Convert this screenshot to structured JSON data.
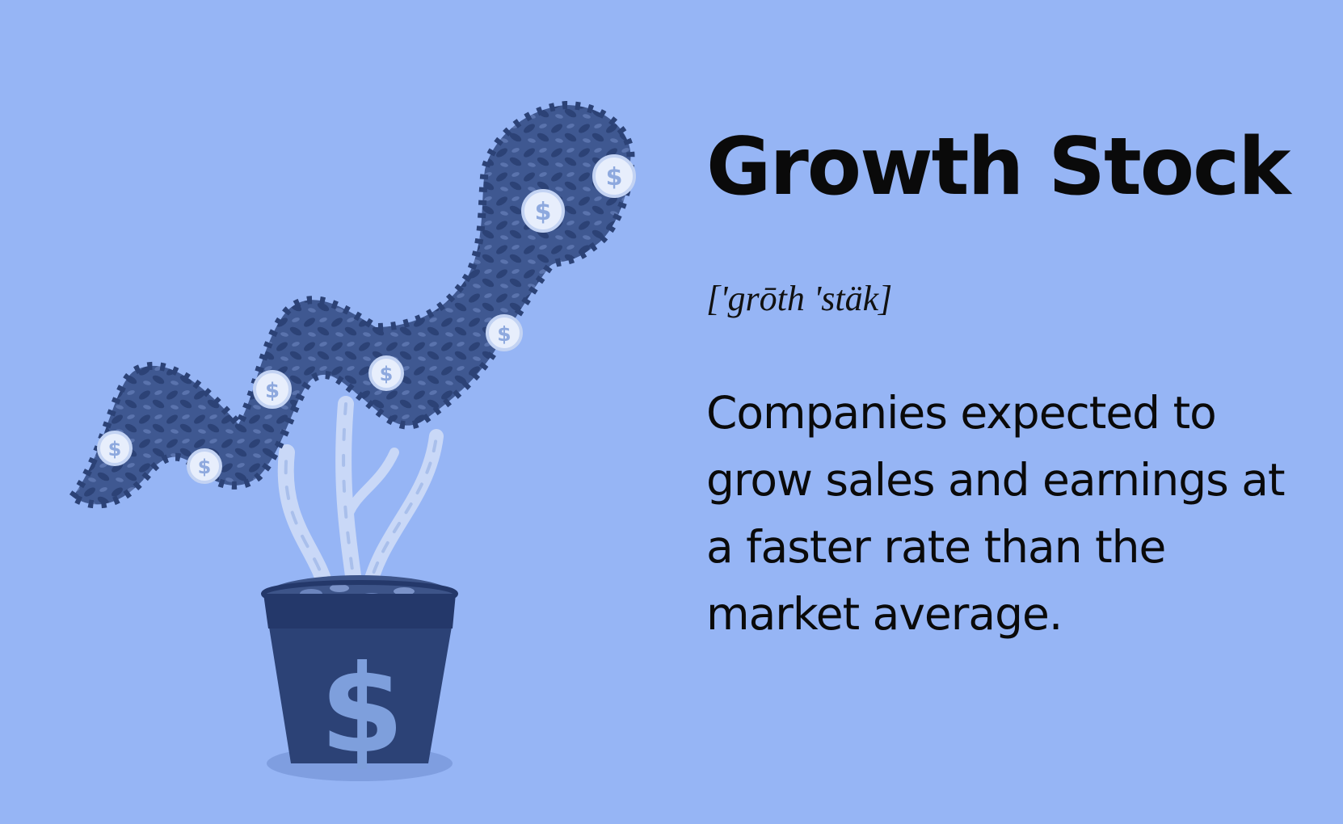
{
  "title": "Growth Stock",
  "pronunciation": "['grōth 'stäk]",
  "definition": "Companies expected to grow sales and earnings at a faster rate than the market average.",
  "illustration": {
    "pot_symbol": "$",
    "coin_symbol": "$"
  },
  "colors": {
    "background": "#96b5f5",
    "foliage": "#3f5891",
    "foliage_dark": "#2c4276",
    "pot": "#2c4276",
    "pot_dollar": "#7e9fdc",
    "trunk": "#c9d8f7",
    "coin": "#e7eefc"
  },
  "icons": [
    "leaf-tree-icon",
    "money-pot-icon",
    "dollar-coin-icon"
  ]
}
